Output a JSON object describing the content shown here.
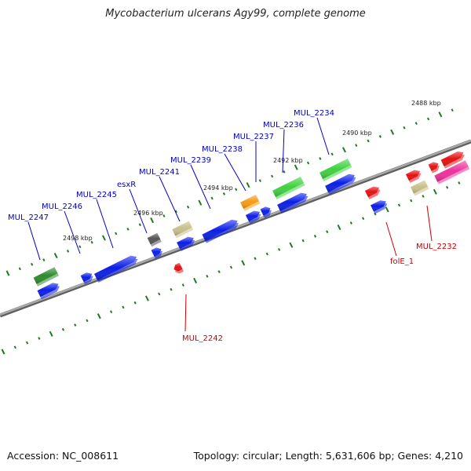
{
  "title": "Mycobacterium ulcerans Agy99, complete genome",
  "footer": {
    "accession": "Accession: NC_008611",
    "stats": "Topology: circular; Length: 5,631,606 bp; Genes: 4,210"
  },
  "colors": {
    "backbone": "#8a8a8a",
    "tick": "#1f7a1f",
    "label_forward": "#0000cc",
    "label_reverse": "#cc0000",
    "dark_green": "#2e8b2e",
    "light_green": "#3fd23f",
    "blue": "#0a1ee8",
    "khaki": "#c8bf8a",
    "gray": "#555555",
    "orange": "#f59b12",
    "red": "#e81010",
    "pink": "#ee2f9c"
  },
  "tick_labels": [
    "2488 kbp",
    "2490 kbp",
    "2492 kbp",
    "2494 kbp",
    "2496 kbp",
    "2498 kbp"
  ],
  "gene_labels_top": [
    "MUL_2247",
    "MUL_2246",
    "MUL_2245",
    "esxR",
    "MUL_2241",
    "MUL_2239",
    "MUL_2238",
    "MUL_2237",
    "MUL_2236",
    "MUL_2234"
  ],
  "gene_labels_bottom": [
    "MUL_2242",
    "folE_1",
    "MUL_2232"
  ]
}
